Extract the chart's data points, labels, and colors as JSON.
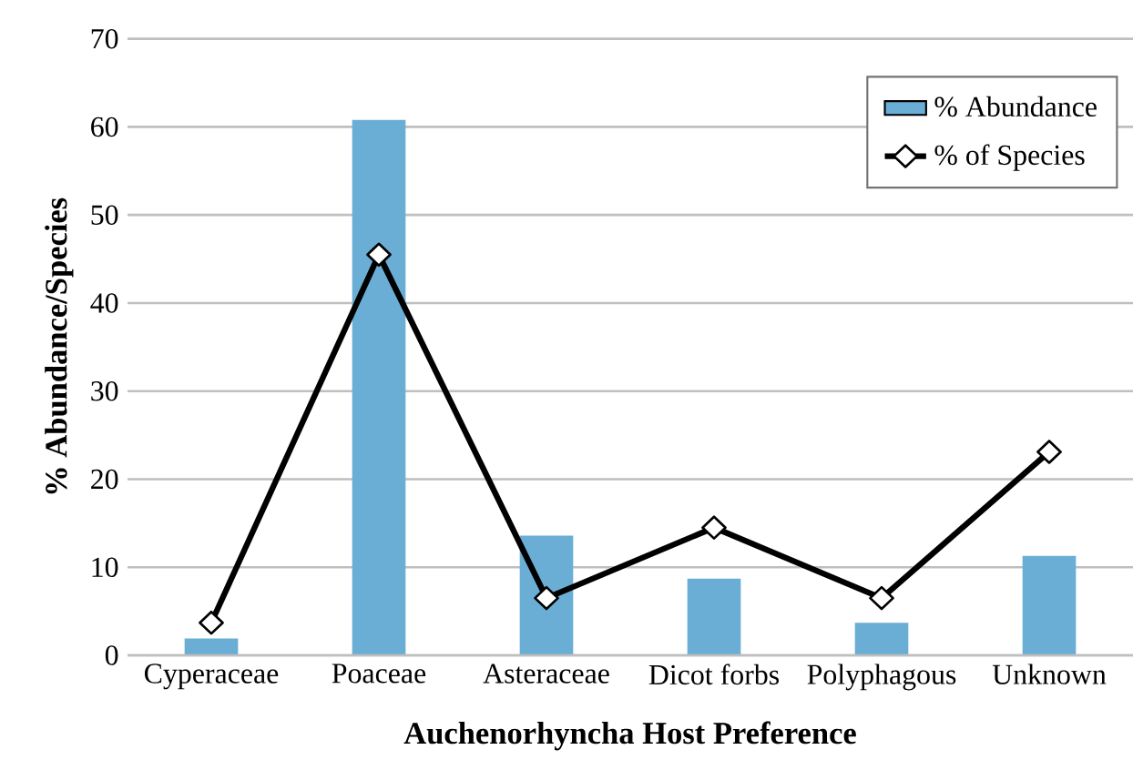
{
  "chart_data": {
    "type": "bar",
    "xlabel": "Auchenorhyncha Host Preference",
    "ylabel": "% Abundance/Species",
    "categories": [
      "Cyperaceae",
      "Poaceae",
      "Asteraceae",
      "Dicot forbs",
      "Polyphagous",
      "Unknown"
    ],
    "series": [
      {
        "name": "% Abundance",
        "color": "#6aaed6",
        "values": [
          1.9,
          60.8,
          13.6,
          8.7,
          3.7,
          11.3
        ]
      },
      {
        "name": "% of Species",
        "type": "line",
        "color": "#000000",
        "marker": "diamond",
        "line_style": "solid",
        "values": [
          3.7,
          45.5,
          6.5,
          14.5,
          6.5,
          23.1
        ]
      }
    ],
    "ylim": [
      0,
      70
    ],
    "yticks": [
      0,
      10,
      20,
      30,
      40,
      50,
      60,
      70
    ],
    "grid": "y",
    "legend": "top right"
  }
}
